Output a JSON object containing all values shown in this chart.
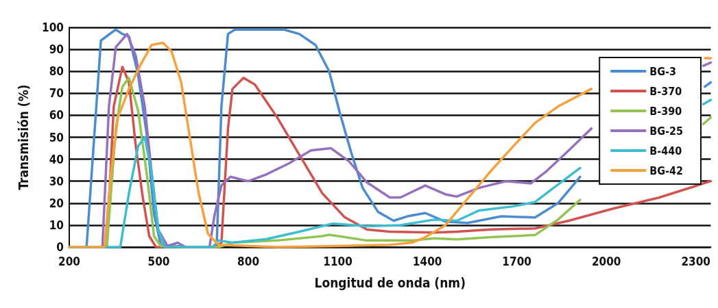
{
  "chart_data": {
    "type": "line",
    "xlabel": "Longitud de onda (nm)",
    "ylabel": "Transmisión (%)",
    "xlim": [
      200,
      2350
    ],
    "xticks": [
      200,
      500,
      800,
      1100,
      1400,
      1700,
      2000,
      2300
    ],
    "ylim": [
      0,
      100
    ],
    "yticks": [
      0,
      10,
      20,
      30,
      40,
      50,
      60,
      70,
      80,
      90,
      100
    ],
    "grid": "y",
    "legend": "top right",
    "marker": "none",
    "line_style": "solid",
    "series": [
      {
        "name": "BG-3",
        "color": "#4a8ccd",
        "x": [
          200,
          258,
          306,
          356,
          378,
          400,
          430,
          461,
          484,
          507,
          600,
          680,
          694,
          710,
          732,
          755,
          920,
          971,
          1025,
          1071,
          1107,
          1145,
          1183,
          1235,
          1287,
          1333,
          1393,
          1461,
          1535,
          1648,
          1761,
          1838,
          1912,
          1960,
          2330,
          2350
        ],
        "values": [
          0,
          0,
          94,
          99,
          97,
          96,
          79,
          50,
          15,
          1,
          0,
          0,
          0,
          64,
          97,
          99,
          99,
          97,
          92,
          80,
          61,
          43,
          27,
          16,
          12,
          14,
          15.5,
          11.6,
          11,
          14,
          13.5,
          20,
          32,
          null,
          73,
          75
        ]
      },
      {
        "name": "B-370",
        "color": "#d0534f",
        "x": [
          200,
          326,
          349,
          378,
          400,
          423,
          446,
          468,
          491,
          600,
          690,
          710,
          732,
          747,
          784,
          822,
          897,
          971,
          1048,
          1123,
          1197,
          1274,
          1423,
          1499,
          1612,
          1761,
          1874,
          2025,
          2176,
          2350
        ],
        "values": [
          0,
          0,
          64,
          82,
          75,
          46,
          23,
          5,
          0,
          0,
          0,
          2,
          54,
          72,
          77,
          74,
          59,
          42,
          24.5,
          13.6,
          8,
          7,
          6.6,
          7,
          8,
          8.5,
          12,
          17.6,
          22.5,
          30
        ]
      },
      {
        "name": "B-390",
        "color": "#92c353",
        "x": [
          200,
          326,
          356,
          378,
          400,
          431,
          461,
          484,
          507,
          600,
          700,
          747,
          897,
          1048,
          1071,
          1197,
          1348,
          1423,
          1499,
          1612,
          1761,
          1838,
          1912,
          1960,
          2325,
          2350
        ],
        "values": [
          0,
          0,
          54,
          73,
          77,
          62,
          32,
          5,
          0.5,
          0,
          0,
          2,
          3,
          5,
          5.6,
          3,
          3,
          4,
          3.5,
          4.5,
          5.5,
          12.5,
          21.5,
          null,
          56,
          59
        ]
      },
      {
        "name": "BG-25",
        "color": "#9470bd",
        "x": [
          200,
          311,
          333,
          356,
          394,
          423,
          453,
          476,
          498,
          529,
          563,
          590,
          670,
          687,
          710,
          740,
          800,
          859,
          935,
          1010,
          1077,
          1138,
          1197,
          1274,
          1310,
          1393,
          1461,
          1499,
          1574,
          1664,
          1747,
          1799,
          1874,
          1950,
          1970,
          2325,
          2350
        ],
        "values": [
          0,
          0,
          64,
          91,
          97,
          87,
          64,
          34,
          8,
          0.5,
          2,
          0,
          0,
          14.6,
          28,
          32,
          30,
          33,
          38,
          44,
          45,
          39,
          29.5,
          22.6,
          22.6,
          28,
          24,
          23,
          27,
          30,
          29,
          34.5,
          44,
          54,
          null,
          82.5,
          84
        ]
      },
      {
        "name": "B-440",
        "color": "#3dbdd0",
        "x": [
          200,
          371,
          400,
          431,
          453,
          476,
          498,
          520,
          680,
          701,
          747,
          859,
          971,
          1084,
          1197,
          1310,
          1423,
          1499,
          1574,
          1686,
          1761,
          1838,
          1912,
          1960,
          2325,
          2350
        ],
        "values": [
          0,
          0,
          24.5,
          46,
          50,
          34,
          8,
          0,
          0,
          3,
          2,
          3.6,
          7,
          10.7,
          9.5,
          10,
          12.5,
          12,
          16.7,
          18.5,
          20.5,
          28.5,
          36,
          null,
          65,
          67
        ]
      },
      {
        "name": "BG-42",
        "color": "#f5a13d",
        "x": [
          200,
          318,
          340,
          363,
          400,
          439,
          476,
          514,
          543,
          575,
          604,
          633,
          665,
          701,
          900,
          1274,
          1348,
          1386,
          1461,
          1535,
          1612,
          1686,
          1761,
          1838,
          1950,
          1965,
          2330,
          2350
        ],
        "values": [
          0,
          0,
          34,
          59,
          72,
          83,
          92,
          93,
          89,
          75,
          50,
          25,
          6,
          1,
          0,
          1,
          2,
          4,
          10,
          22,
          34.5,
          45.6,
          56.5,
          64,
          72,
          null,
          86,
          86
        ]
      }
    ]
  }
}
